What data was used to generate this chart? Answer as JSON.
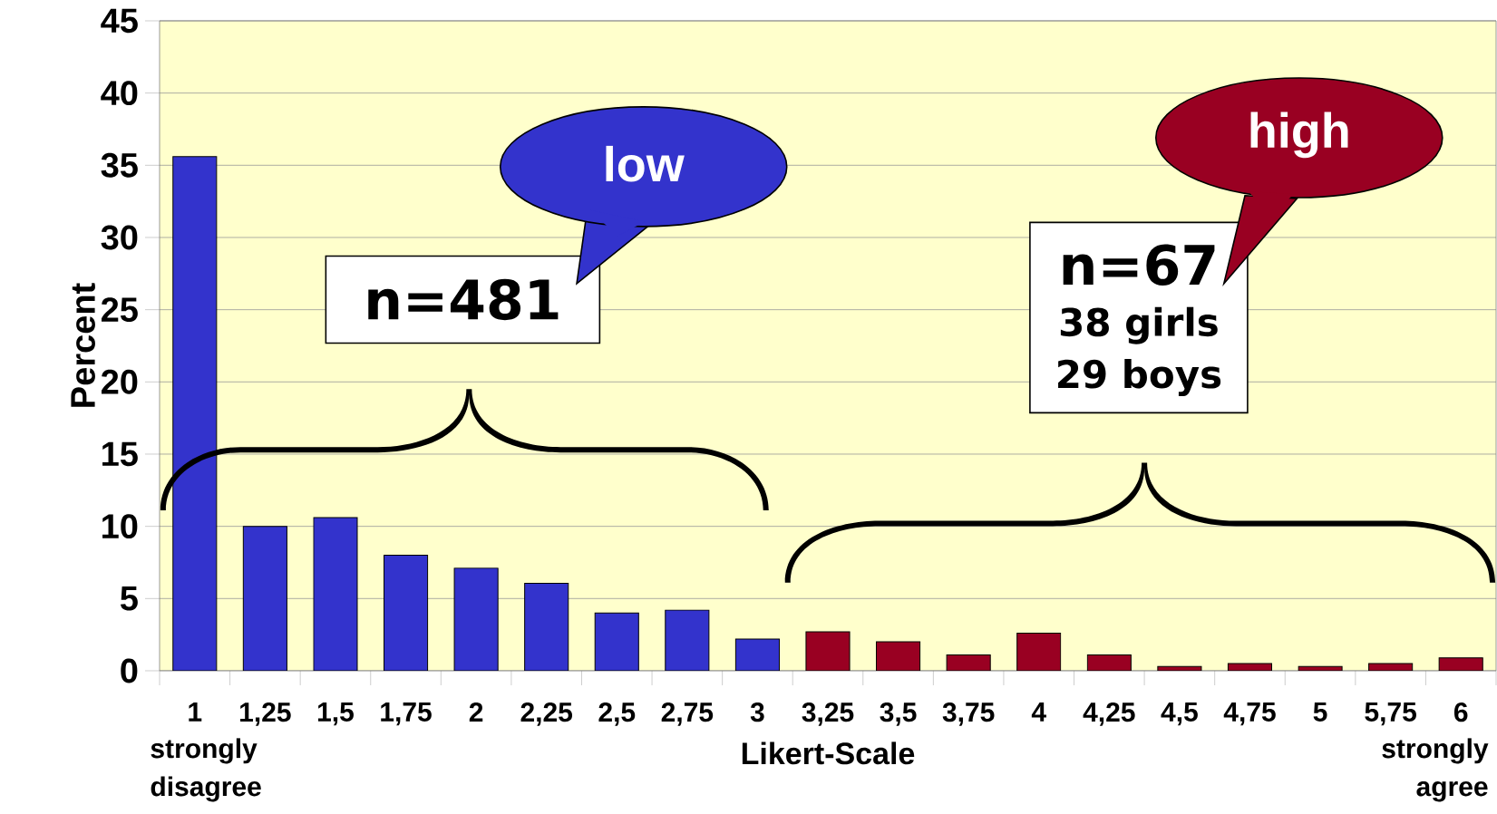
{
  "chart_data": {
    "type": "bar",
    "ylabel": "Percent",
    "xlabel": "Likert-Scale",
    "categories": [
      "1",
      "1,25",
      "1,5",
      "1,75",
      "2",
      "2,25",
      "2,5",
      "2,75",
      "3",
      "3,25",
      "3,5",
      "3,75",
      "4",
      "4,25",
      "4,5",
      "4,75",
      "5",
      "5,75",
      "6"
    ],
    "values": [
      35.6,
      10.0,
      10.6,
      8.0,
      7.1,
      6.05,
      4.0,
      4.2,
      2.2,
      2.7,
      2.0,
      1.1,
      2.6,
      1.1,
      0.3,
      0.5,
      0.3,
      0.5,
      0.9
    ],
    "colors": [
      "#3333cc",
      "#3333cc",
      "#3333cc",
      "#3333cc",
      "#3333cc",
      "#3333cc",
      "#3333cc",
      "#3333cc",
      "#3333cc",
      "#990022",
      "#990022",
      "#990022",
      "#990022",
      "#990022",
      "#990022",
      "#990022",
      "#990022",
      "#990022",
      "#990022"
    ],
    "ylim": [
      0,
      45
    ],
    "yticks": [
      0,
      5,
      10,
      15,
      20,
      25,
      30,
      35,
      40,
      45
    ],
    "grid": "y",
    "annotations": [
      "low",
      "n=481",
      "high",
      "n=67",
      "38 girls",
      "29 boys",
      "strongly disagree",
      "strongly agree"
    ]
  }
}
